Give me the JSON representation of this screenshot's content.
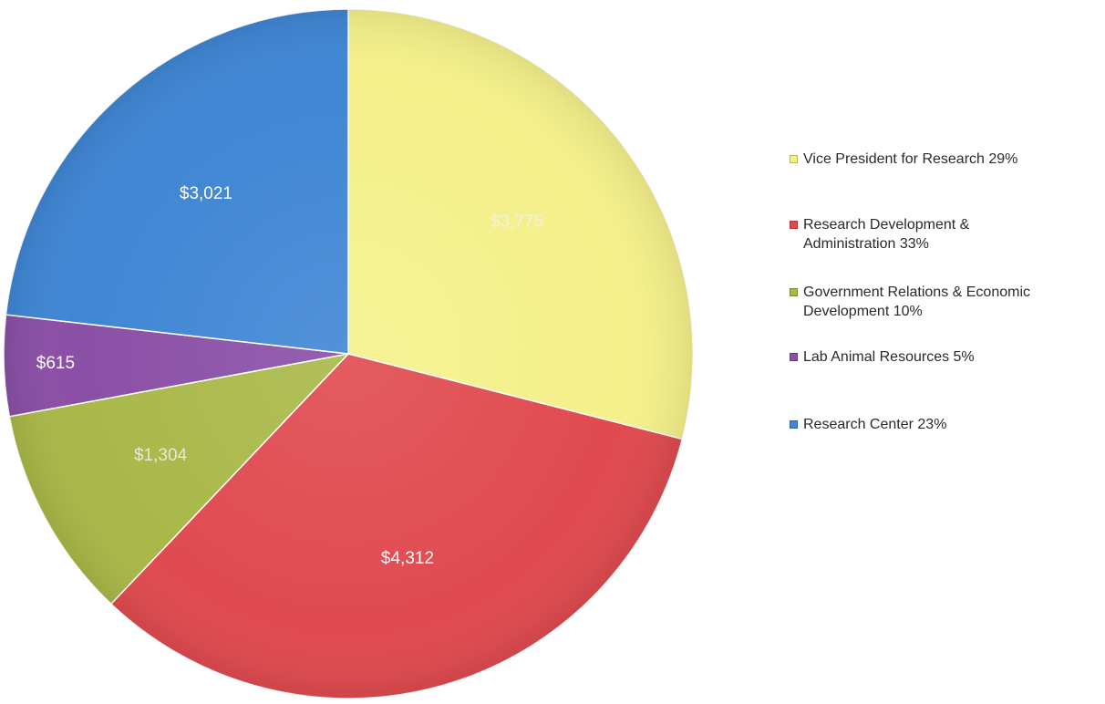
{
  "chart_data": {
    "type": "pie",
    "start_angle_deg": 0,
    "direction": "clockwise",
    "legend_position": "right",
    "slices": [
      {
        "label": "Vice President for Research",
        "value": 3775,
        "value_label": "$3,775",
        "percent_label": "29%",
        "legend_text": "Vice President for Research   29%",
        "color": "#f5f08a"
      },
      {
        "label": "Research Development & Administration",
        "value": 4312,
        "value_label": "$4,312",
        "percent_label": "33%",
        "legend_text": "Research Development &\nAdministration 33%",
        "color": "#e04a4f"
      },
      {
        "label": "Government Relations & Economic Development",
        "value": 1304,
        "value_label": "$1,304",
        "percent_label": "10%",
        "legend_text": "Government Relations & Economic\nDevelopment  10%",
        "color": "#a9b848"
      },
      {
        "label": "Lab Animal Resources",
        "value": 615,
        "value_label": "$615",
        "percent_label": "5%",
        "legend_text": "Lab Animal Resources   5%",
        "color": "#8a4fa6"
      },
      {
        "label": "Research Center",
        "value": 3021,
        "value_label": "$3,021",
        "percent_label": "23%",
        "legend_text": "Research Center  23%",
        "color": "#3f86d4"
      }
    ]
  }
}
